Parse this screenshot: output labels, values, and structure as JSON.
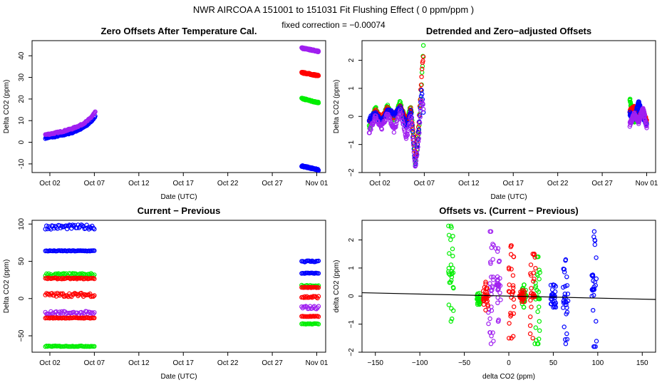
{
  "header": {
    "title": "NWR   AIRCOA A   151001 to 151031   Fit Flushing Effect ( 0 ppm/ppm )",
    "subtitle": "fixed correction = −0.00074"
  },
  "colors": {
    "blue": "#0000ff",
    "red": "#ff0000",
    "green": "#00ee00",
    "purple": "#a020f0",
    "black": "#000000"
  },
  "chart_data": [
    {
      "type": "scatter",
      "title": "Zero Offsets After Temperature Cal.",
      "xlabel": "Date (UTC)",
      "ylabel": "Delta CO2 (ppm)",
      "x_unit": "day of October 2015",
      "xlim": [
        0,
        33
      ],
      "ylim": [
        -14,
        47
      ],
      "xticks": [
        2,
        7,
        12,
        17,
        22,
        27,
        32
      ],
      "xtick_labels": [
        "Oct 02",
        "Oct 07",
        "Oct 12",
        "Oct 17",
        "Oct 22",
        "Oct 27",
        "Nov 01"
      ],
      "yticks": [
        -10,
        0,
        10,
        20,
        30,
        40
      ],
      "ytick_labels": [
        "-10",
        "0",
        "10",
        "20",
        "30",
        "40"
      ],
      "series": [
        {
          "name": "blue",
          "color": "blue",
          "segments": [
            {
              "x": [
                1.5,
                2.5,
                3.5,
                4.5,
                5.5,
                6.2,
                6.7,
                7.1
              ],
              "y": [
                2,
                2.6,
                3.4,
                4.5,
                6.2,
                8,
                10,
                12
              ]
            },
            {
              "x": [
                30.3,
                30.8,
                31.3,
                31.8,
                32.2
              ],
              "y": [
                -11,
                -11.4,
                -11.9,
                -12.4,
                -12.8
              ]
            }
          ]
        },
        {
          "name": "purple",
          "color": "purple",
          "segments": [
            {
              "x": [
                1.5,
                2.5,
                3.5,
                4.5,
                5.5,
                6.2,
                6.7,
                7.1
              ],
              "y": [
                3.5,
                4.2,
                5.1,
                6.3,
                8,
                9.8,
                11.8,
                14
              ]
            },
            {
              "x": [
                30.3,
                30.8,
                31.3,
                31.8,
                32.2
              ],
              "y": [
                43.5,
                43.2,
                42.8,
                42.4,
                42
              ]
            }
          ]
        },
        {
          "name": "red",
          "color": "red",
          "segments": [
            {
              "x": [
                30.3,
                30.8,
                31.3,
                31.8,
                32.2
              ],
              "y": [
                32.2,
                31.9,
                31.5,
                31.1,
                30.8
              ]
            }
          ]
        },
        {
          "name": "green",
          "color": "green",
          "segments": [
            {
              "x": [
                30.3,
                30.8,
                31.3,
                31.8,
                32.2
              ],
              "y": [
                20.2,
                19.8,
                19.2,
                18.7,
                18.3
              ]
            }
          ]
        }
      ]
    },
    {
      "type": "scatter",
      "title": "Detrended and Zero−adjusted Offsets",
      "xlabel": "Date (UTC)",
      "ylabel": "Delta CO2 (ppm)",
      "x_unit": "day of October 2015",
      "xlim": [
        0,
        33
      ],
      "ylim": [
        -2,
        2.7
      ],
      "xticks": [
        2,
        7,
        12,
        17,
        22,
        27,
        32
      ],
      "xtick_labels": [
        "Oct 02",
        "Oct 07",
        "Oct 12",
        "Oct 17",
        "Oct 22",
        "Oct 27",
        "Nov 01"
      ],
      "yticks": [
        -2,
        -1,
        0,
        1,
        2
      ],
      "ytick_labels": [
        "−2",
        "−1",
        "0",
        "1",
        "2"
      ],
      "series": [
        {
          "name": "green",
          "color": "green",
          "segments": [
            {
              "x": [
                0.8,
                1.5,
                2.2,
                2.9,
                3.6,
                4.3,
                5.0,
                5.5,
                6.0,
                6.4,
                6.7,
                6.9
              ],
              "y": [
                -0.4,
                0.3,
                -0.2,
                0.4,
                -0.1,
                0.5,
                -0.3,
                0.4,
                -1.7,
                -0.5,
                1.2,
                2.5
              ]
            },
            {
              "x": [
                30.1,
                30.6,
                31.1,
                31.6,
                32.0
              ],
              "y": [
                0.6,
                -0.2,
                0.4,
                0.1,
                -0.3
              ]
            }
          ]
        },
        {
          "name": "red",
          "color": "red",
          "segments": [
            {
              "x": [
                0.8,
                1.5,
                2.2,
                2.9,
                3.6,
                4.3,
                5.0,
                5.5,
                6.0,
                6.4,
                6.7,
                6.9
              ],
              "y": [
                -0.2,
                0.2,
                -0.1,
                0.3,
                0.0,
                0.4,
                -0.2,
                0.3,
                -1.5,
                -0.2,
                1.5,
                2.2
              ]
            },
            {
              "x": [
                30.1,
                30.6,
                31.1,
                31.6,
                32.0
              ],
              "y": [
                0.2,
                0.3,
                0.0,
                0.2,
                -0.2
              ]
            }
          ]
        },
        {
          "name": "blue",
          "color": "blue",
          "segments": [
            {
              "x": [
                0.8,
                1.5,
                2.2,
                2.9,
                3.6,
                4.3,
                5.0,
                5.5,
                6.0,
                6.4,
                6.7,
                6.9
              ],
              "y": [
                -0.1,
                0.1,
                -0.2,
                0.2,
                0.1,
                0.3,
                -0.4,
                0.2,
                -1.8,
                -0.4,
                1.0,
                0.2
              ]
            },
            {
              "x": [
                30.1,
                30.6,
                31.1,
                31.6,
                32.0
              ],
              "y": [
                0.1,
                -0.1,
                0.5,
                0.0,
                -0.3
              ]
            }
          ]
        },
        {
          "name": "purple",
          "color": "purple",
          "segments": [
            {
              "x": [
                0.8,
                1.5,
                2.2,
                2.9,
                3.6,
                4.3,
                5.0,
                5.5,
                6.0,
                6.4,
                6.7,
                6.9
              ],
              "y": [
                -0.6,
                0.0,
                -0.4,
                0.1,
                -0.5,
                0.2,
                -0.8,
                0.0,
                -1.9,
                -0.7,
                0.6,
                0.3
              ]
            },
            {
              "x": [
                30.1,
                30.6,
                31.1,
                31.6,
                32.0
              ],
              "y": [
                -0.3,
                0.1,
                -0.2,
                0.3,
                -0.4
              ]
            }
          ]
        }
      ]
    },
    {
      "type": "scatter",
      "title": "Current − Previous",
      "xlabel": "Date (UTC)",
      "ylabel": "Delta CO2 (ppm)",
      "x_unit": "day of October 2015",
      "xlim": [
        0,
        33
      ],
      "ylim": [
        -72,
        105
      ],
      "xticks": [
        2,
        7,
        12,
        17,
        22,
        27,
        32
      ],
      "xtick_labels": [
        "Oct 02",
        "Oct 07",
        "Oct 12",
        "Oct 17",
        "Oct 22",
        "Oct 27",
        "Nov 01"
      ],
      "yticks": [
        -50,
        0,
        50,
        100
      ],
      "ytick_labels": [
        "−50",
        "0",
        "50",
        "100"
      ],
      "series": [
        {
          "name": "blue band 1",
          "color": "blue",
          "levels": [
            96,
            50
          ],
          "spread": [
            3,
            1
          ]
        },
        {
          "name": "blue band 2",
          "color": "blue",
          "levels": [
            64,
            34
          ],
          "spread": [
            0.5,
            0.5
          ]
        },
        {
          "name": "green band 1",
          "color": "green",
          "levels": [
            32,
            17
          ],
          "spread": [
            2,
            1
          ]
        },
        {
          "name": "red band 1",
          "color": "red",
          "levels": [
            27,
            15
          ],
          "spread": [
            0.8,
            0.5
          ]
        },
        {
          "name": "red band 2",
          "color": "red",
          "levels": [
            5,
            2
          ],
          "spread": [
            2.5,
            1.5
          ]
        },
        {
          "name": "purple band 1",
          "color": "purple",
          "levels": [
            -20,
            -12
          ],
          "spread": [
            3,
            2
          ]
        },
        {
          "name": "red band 3",
          "color": "red",
          "levels": [
            -26,
            -24
          ],
          "spread": [
            0.5,
            0.5
          ]
        },
        {
          "name": "green band 2",
          "color": "green",
          "levels": [
            -64,
            -34
          ],
          "spread": [
            0.5,
            0.5
          ]
        }
      ],
      "x_ranges": [
        [
          1.5,
          7.0
        ],
        [
          30.3,
          32.2
        ]
      ]
    },
    {
      "type": "scatter",
      "title": "Offsets vs. (Current − Previous)",
      "xlabel": "delta CO2 (ppm)",
      "ylabel": "delta CO2 (ppm)",
      "xlim": [
        -165,
        165
      ],
      "ylim": [
        -2,
        2.7
      ],
      "xticks": [
        -150,
        -100,
        -50,
        0,
        50,
        100,
        150
      ],
      "xtick_labels": [
        "−150",
        "−100",
        "−50",
        "0",
        "50",
        "100",
        "150"
      ],
      "yticks": [
        -2,
        -1,
        0,
        1,
        2
      ],
      "ytick_labels": [
        "−2",
        "−1",
        "0",
        "1",
        "2"
      ],
      "fit_line": {
        "x": [
          -165,
          165
        ],
        "y": [
          0.12,
          -0.12
        ]
      },
      "series": [
        {
          "name": "green",
          "color": "green",
          "columns": [
            {
              "x": -65,
              "ymin": -0.9,
              "ymax": 2.5
            },
            {
              "x": -33,
              "ymin": -0.3,
              "ymax": 0.1
            },
            {
              "x": 17,
              "ymin": -0.4,
              "ymax": 0.4
            },
            {
              "x": 32,
              "ymin": -1.7,
              "ymax": 1.4
            }
          ]
        },
        {
          "name": "purple",
          "color": "purple",
          "columns": [
            {
              "x": -20,
              "ymin": -1.7,
              "ymax": 2.3
            },
            {
              "x": -12,
              "ymin": -0.9,
              "ymax": 1.7
            }
          ]
        },
        {
          "name": "red",
          "color": "red",
          "columns": [
            {
              "x": -26,
              "ymin": -0.5,
              "ymax": 0.5
            },
            {
              "x": 3,
              "ymin": -1.5,
              "ymax": 1.8
            },
            {
              "x": 15,
              "ymin": -0.2,
              "ymax": 0.2
            },
            {
              "x": 27,
              "ymin": -1.5,
              "ymax": 1.5
            }
          ]
        },
        {
          "name": "blue",
          "color": "blue",
          "columns": [
            {
              "x": 50,
              "ymin": -0.4,
              "ymax": 0.4
            },
            {
              "x": 64,
              "ymin": -1.7,
              "ymax": 1.3
            },
            {
              "x": 96,
              "ymin": -1.8,
              "ymax": 2.3
            }
          ]
        }
      ]
    }
  ]
}
